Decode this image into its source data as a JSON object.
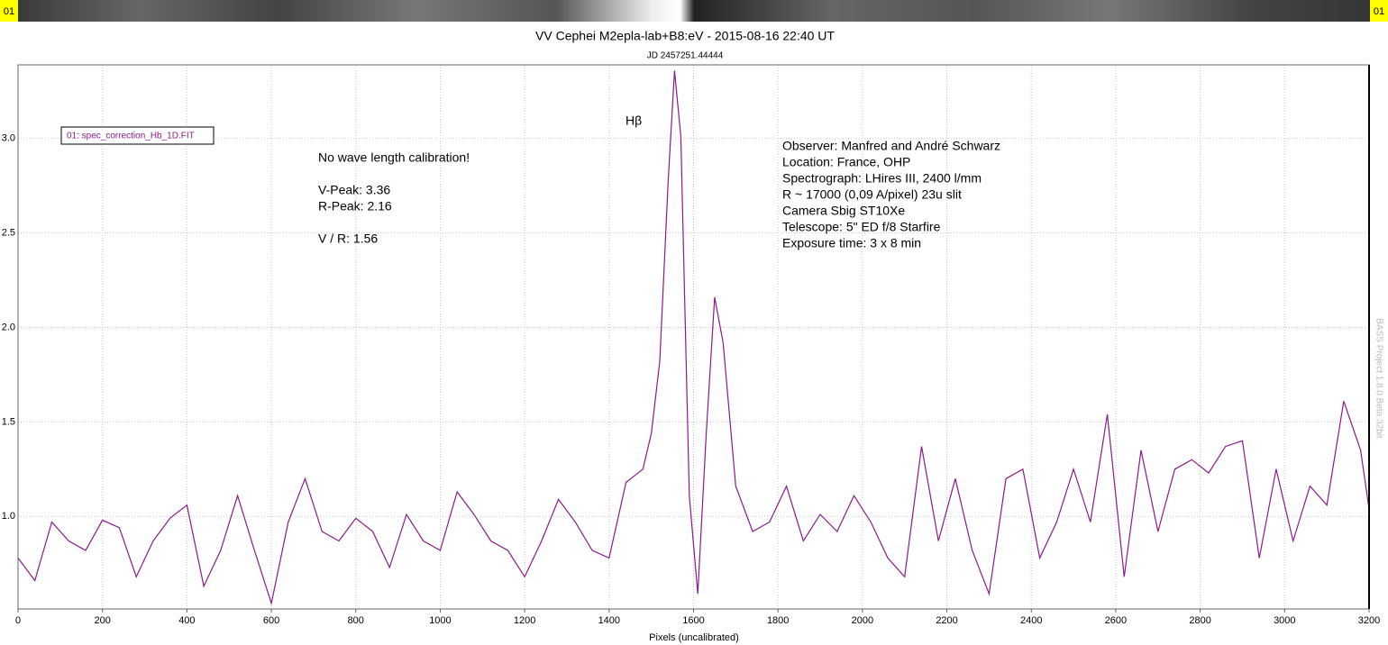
{
  "chart_data": {
    "type": "line",
    "title": "VV Cephei M2epla-lab+B8:eV - 2015-08-16 22:40 UT",
    "subtitle": "JD 2457251.44444",
    "x_label": "Pixels (uncalibrated)",
    "strip_labels": [
      "01",
      "01"
    ],
    "watermark": "BASS Project 1.8.0 Beta 32bit",
    "line_label": "Hβ",
    "notes": [
      "No wave length calibration!",
      "V-Peak: 3.36",
      "R-Peak: 2.16",
      "V / R: 1.56"
    ],
    "info": [
      "Observer: Manfred and André Schwarz",
      "Location: France, OHP",
      "Spectrograph: LHires III, 2400 l/mm",
      "R ~ 17000 (0,09 A/pixel) 23u slit",
      "Camera Sbig ST10Xe",
      "Telescope: 5\" ED f/8 Starfire",
      "Exposure time: 3 x 8 min"
    ],
    "xlim": [
      0,
      3200
    ],
    "ylim": [
      0.51,
      3.39
    ],
    "xticks": [
      0,
      200,
      400,
      600,
      800,
      1000,
      1200,
      1400,
      1600,
      1800,
      2000,
      2200,
      2400,
      2600,
      2800,
      3000,
      3200
    ],
    "yticks": [
      {
        "value": 1,
        "label": "1.0"
      },
      {
        "value": 1.5,
        "label": "1.5"
      },
      {
        "value": 2,
        "label": "2.0"
      },
      {
        "value": 2.5,
        "label": "2.5"
      },
      {
        "value": 3,
        "label": "3.0"
      }
    ],
    "grid": true,
    "legend": "upper left",
    "x": [
      0,
      40,
      80,
      120,
      160,
      200,
      240,
      280,
      320,
      360,
      400,
      440,
      480,
      520,
      560,
      600,
      640,
      680,
      720,
      760,
      800,
      840,
      880,
      920,
      960,
      1000,
      1040,
      1080,
      1120,
      1160,
      1200,
      1240,
      1280,
      1320,
      1360,
      1400,
      1440,
      1480,
      1500,
      1520,
      1540,
      1555,
      1570,
      1590,
      1610,
      1630,
      1650,
      1670,
      1700,
      1740,
      1780,
      1820,
      1860,
      1900,
      1940,
      1980,
      2020,
      2060,
      2100,
      2140,
      2180,
      2220,
      2260,
      2300,
      2340,
      2380,
      2420,
      2460,
      2500,
      2540,
      2580,
      2620,
      2660,
      2700,
      2740,
      2780,
      2820,
      2860,
      2900,
      2940,
      2980,
      3020,
      3060,
      3100,
      3140,
      3180,
      3200
    ],
    "series": [
      {
        "name": "01: spec_correction_Hb_1D.FIT",
        "color": "#8b1a8b",
        "values": [
          0.78,
          0.66,
          0.97,
          0.87,
          0.82,
          0.98,
          0.94,
          0.68,
          0.87,
          0.99,
          1.06,
          0.63,
          0.82,
          1.11,
          0.82,
          0.54,
          0.97,
          1.2,
          0.92,
          0.87,
          0.99,
          0.92,
          0.73,
          1.01,
          0.87,
          0.82,
          1.13,
          1.01,
          0.87,
          0.82,
          0.68,
          0.87,
          1.09,
          0.97,
          0.82,
          0.78,
          1.18,
          1.25,
          1.44,
          1.82,
          2.78,
          3.36,
          3.01,
          1.11,
          0.59,
          1.44,
          2.16,
          1.92,
          1.16,
          0.92,
          0.97,
          1.16,
          0.87,
          1.01,
          0.92,
          1.11,
          0.97,
          0.78,
          0.68,
          1.37,
          0.87,
          1.2,
          0.82,
          0.59,
          1.2,
          1.25,
          0.78,
          0.97,
          1.25,
          0.97,
          1.54,
          0.68,
          1.35,
          0.92,
          1.25,
          1.3,
          1.23,
          1.37,
          1.4,
          0.78,
          1.25,
          0.87,
          1.16,
          1.06,
          1.61,
          1.35,
          1.04
        ]
      }
    ]
  }
}
